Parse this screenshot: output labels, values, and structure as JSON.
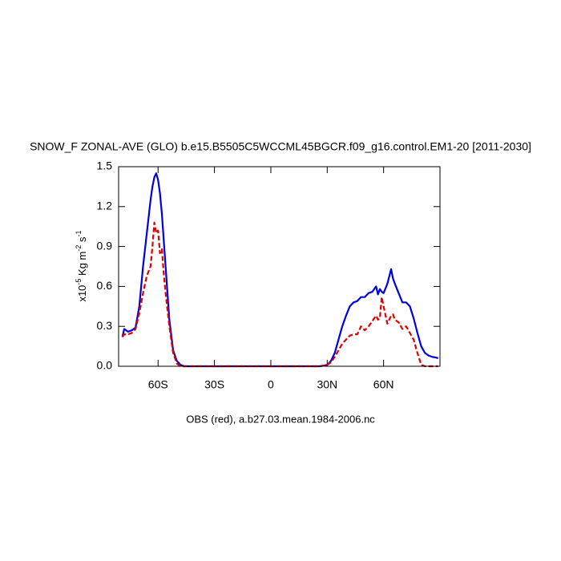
{
  "chart_data": {
    "type": "line",
    "title": "SNOW_F ZONAL-AVE (GLO) b.e15.B5505C5WCCML45BGCR.f09_g16.control.EM1-20 [2011-2030]",
    "xlabel": "OBS (red), a.b27.03.mean.1984-2006.nc",
    "ylabel": [
      "x10",
      "-5",
      " Kg m",
      "-2",
      " s",
      "-1"
    ],
    "xlim": [
      -81,
      90
    ],
    "xticks": [
      {
        "value": -60,
        "label": "60S"
      },
      {
        "value": -30,
        "label": "30S"
      },
      0,
      {
        "value": 30,
        "label": "30N"
      },
      {
        "value": 60,
        "label": "60N"
      }
    ],
    "ylim": [
      0,
      1.5
    ],
    "yticks": [
      {
        "value": 0,
        "label": "0.0"
      },
      0.3,
      0.6,
      0.9,
      1.2,
      1.5
    ],
    "x": [
      -79,
      -78,
      -76,
      -74,
      -72,
      -70,
      -68,
      -66,
      -64,
      -63,
      -62,
      -61,
      -60,
      -59,
      -58,
      -57,
      -56,
      -54,
      -52,
      -50,
      -48,
      -46,
      -40,
      -30,
      -20,
      -10,
      0,
      10,
      20,
      26,
      30,
      32,
      34,
      36,
      38,
      40,
      42,
      44,
      46,
      48,
      50,
      52,
      54,
      56,
      57,
      58,
      59,
      60,
      62,
      64,
      65,
      66,
      68,
      70,
      72,
      74,
      76,
      78,
      80,
      82,
      84,
      86,
      88,
      89
    ],
    "series": [
      {
        "color": "#0000e0",
        "dash": "solid",
        "values": [
          0.22,
          0.28,
          0.26,
          0.27,
          0.29,
          0.45,
          0.75,
          1.0,
          1.25,
          1.35,
          1.42,
          1.45,
          1.4,
          1.3,
          1.15,
          0.95,
          0.75,
          0.35,
          0.12,
          0.04,
          0.01,
          0,
          0,
          0,
          0,
          0,
          0,
          0,
          0,
          0,
          0.01,
          0.04,
          0.1,
          0.2,
          0.3,
          0.38,
          0.45,
          0.48,
          0.49,
          0.52,
          0.52,
          0.55,
          0.56,
          0.6,
          0.54,
          0.58,
          0.56,
          0.55,
          0.62,
          0.73,
          0.66,
          0.62,
          0.55,
          0.48,
          0.48,
          0.45,
          0.36,
          0.25,
          0.15,
          0.1,
          0.08,
          0.07,
          0.065,
          0.06
        ]
      },
      {
        "color": "#e00000",
        "dash": "dashed",
        "values": [
          0.22,
          0.24,
          0.24,
          0.25,
          0.28,
          0.4,
          0.55,
          0.68,
          0.75,
          0.9,
          1.08,
          1.0,
          1.02,
          0.85,
          0.88,
          0.7,
          0.55,
          0.3,
          0.1,
          0.02,
          0,
          0,
          0,
          0,
          0,
          0,
          0,
          0,
          0,
          0,
          0.01,
          0.03,
          0.07,
          0.12,
          0.17,
          0.2,
          0.23,
          0.24,
          0.24,
          0.3,
          0.27,
          0.3,
          0.34,
          0.38,
          0.35,
          0.36,
          0.52,
          0.45,
          0.32,
          0.38,
          0.39,
          0.35,
          0.33,
          0.28,
          0.3,
          0.25,
          0.2,
          0.1,
          0.01,
          0,
          0,
          0,
          0,
          0
        ]
      }
    ]
  }
}
